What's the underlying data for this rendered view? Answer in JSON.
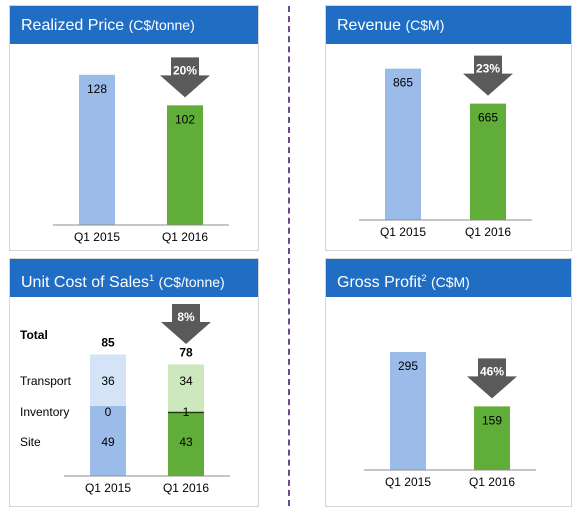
{
  "colors": {
    "header_bg": "#1f6ec4",
    "bar_2015": "#9bbce8",
    "bar_2016": "#61ad3a",
    "bar_2015_light": "#d4e3f5",
    "bar_2016_light": "#cde8bd",
    "arrow": "#5a5a5a",
    "divider": "#6a4a8a"
  },
  "panels": {
    "realized_price": {
      "title": "Realized Price",
      "unit": "(C$/tonne)",
      "arrow_label": "20%"
    },
    "revenue": {
      "title": "Revenue",
      "unit": "(C$M)",
      "arrow_label": "23%"
    },
    "unit_cost": {
      "title": "Unit Cost of Sales",
      "footnote": "1",
      "unit": "(C$/tonne)",
      "arrow_label": "8%"
    },
    "gross_profit": {
      "title": "Gross Profit",
      "footnote": "2",
      "unit": "(C$M)",
      "arrow_label": "46%"
    }
  },
  "chart_data": [
    {
      "id": "realized_price",
      "type": "bar",
      "title": "Realized Price (C$/tonne)",
      "categories": [
        "Q1 2015",
        "Q1 2016"
      ],
      "values": [
        128,
        102
      ],
      "data_labels": [
        "128",
        "102"
      ],
      "ylim": [
        0,
        150
      ],
      "change_label": "20%",
      "grid": false
    },
    {
      "id": "revenue",
      "type": "bar",
      "title": "Revenue (C$M)",
      "categories": [
        "Q1 2015",
        "Q1 2016"
      ],
      "values": [
        865,
        665
      ],
      "data_labels": [
        "865",
        "665"
      ],
      "ylim": [
        0,
        1000
      ],
      "change_label": "23%",
      "grid": false
    },
    {
      "id": "unit_cost",
      "type": "bar",
      "stacked": true,
      "title": "Unit Cost of Sales (C$/tonne)",
      "categories": [
        "Q1 2015",
        "Q1 2016"
      ],
      "series": [
        {
          "name": "Site",
          "values": [
            49,
            43
          ]
        },
        {
          "name": "Inventory",
          "values": [
            0,
            1
          ]
        },
        {
          "name": "Transport",
          "values": [
            36,
            34
          ]
        }
      ],
      "segment_labels": [
        [
          "49",
          "43"
        ],
        [
          "0",
          "1"
        ],
        [
          "36",
          "34"
        ]
      ],
      "total_label": "Total",
      "totals": [
        "85",
        "78"
      ],
      "ylim": [
        0,
        100
      ],
      "change_label": "8%",
      "grid": false
    },
    {
      "id": "gross_profit",
      "type": "bar",
      "title": "Gross Profit (C$M)",
      "categories": [
        "Q1 2015",
        "Q1 2016"
      ],
      "values": [
        295,
        159
      ],
      "data_labels": [
        "295",
        "159"
      ],
      "ylim": [
        0,
        350
      ],
      "change_label": "46%",
      "grid": false
    }
  ]
}
